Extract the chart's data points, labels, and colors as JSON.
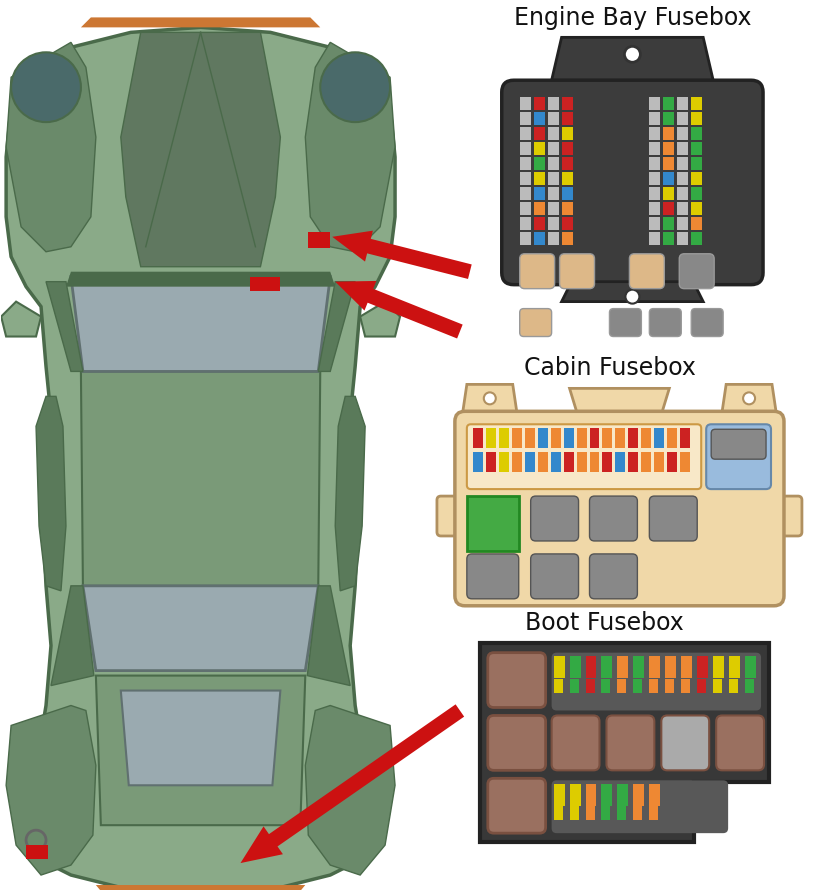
{
  "background_color": "#ffffff",
  "car_body_color": "#8aaa88",
  "car_body_outline": "#4a6a4a",
  "car_dark_panel": "#5a7a5a",
  "car_window_color": "#9aaab0",
  "car_window_outline": "#607070",
  "car_bumper_color": "#cc7733",
  "car_roof_color": "#6a8a6a",
  "arrow_color": "#cc1111",
  "engine_bay_title": "Engine Bay Fusebox",
  "cabin_title": "Cabin Fusebox",
  "boot_title": "Boot Fusebox",
  "eb_bg": "#3c3c3c",
  "eb_mount": "#555555",
  "eb_peach": "#ddb888",
  "eb_gray": "#888888",
  "cabin_bg": "#f0d8a8",
  "cabin_outline": "#b09060",
  "cabin_blue": "#99bbdd",
  "cabin_green": "#44aa44",
  "cabin_gray": "#888888",
  "boot_bg": "#383838",
  "boot_strip_bg": "#585858",
  "boot_brown": "#9a7060",
  "boot_lgray": "#aaaaaa",
  "fuse_red": "#cc2222",
  "fuse_blue": "#3388cc",
  "fuse_yellow": "#ddcc00",
  "fuse_green": "#33aa44",
  "fuse_orange": "#ee8833",
  "fuse_gray": "#bbbbbb"
}
